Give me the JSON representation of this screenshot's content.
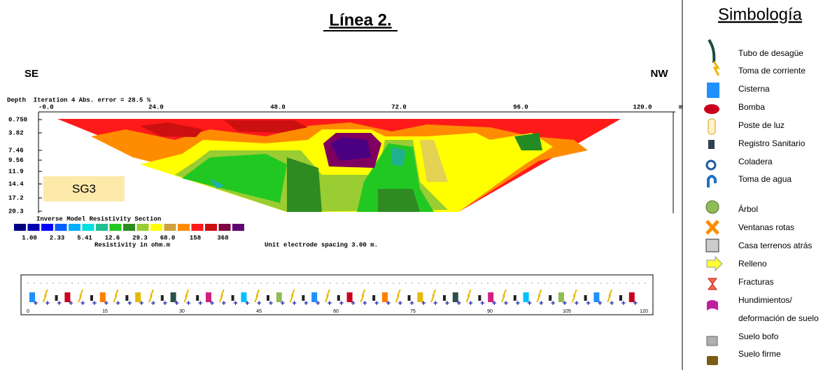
{
  "title": "Línea 2.",
  "directions": {
    "left": "SE",
    "right": "NW"
  },
  "section": {
    "header": "Depth  Iteration 4 Abs. error = 28.5 %",
    "x_labels": [
      "-0.0",
      "24.0",
      "48.0",
      "72.0",
      "96.0",
      "120.0"
    ],
    "x_unit": "m",
    "depth_labels": [
      "0.750",
      "3.82",
      "7.46",
      "9.56",
      "11.9",
      "14.4",
      "17.2",
      "20.3"
    ],
    "label": "SG3",
    "scale_title": "Inverse Model Resistivity Section",
    "scale_labels": [
      "1.00",
      "2.33",
      "5.41",
      "12.6",
      "29.3",
      "68.0",
      "158",
      "368"
    ],
    "scale_unit": "Resistivity in ohm.m",
    "spacing": "Unit electrode spacing 3.00 m."
  },
  "strip": {
    "ticks": [
      "0",
      "15",
      "30",
      "45",
      "60",
      "75",
      "90",
      "105",
      "120"
    ]
  },
  "legend": {
    "title": "Simbología",
    "items": [
      "Tubo de desagüe",
      "Toma de corriente",
      "Cisterna",
      "Bomba",
      "Poste de luz",
      "Registro Sanitario",
      "Coladera",
      "Toma de agua",
      "Árbol",
      "Ventanas rotas",
      "Casa terrenos atrás",
      "Relleno",
      "Fracturas",
      "Hundimientos/",
      "deformación de suelo",
      "Suelo bofo",
      "Suelo firme"
    ]
  }
}
